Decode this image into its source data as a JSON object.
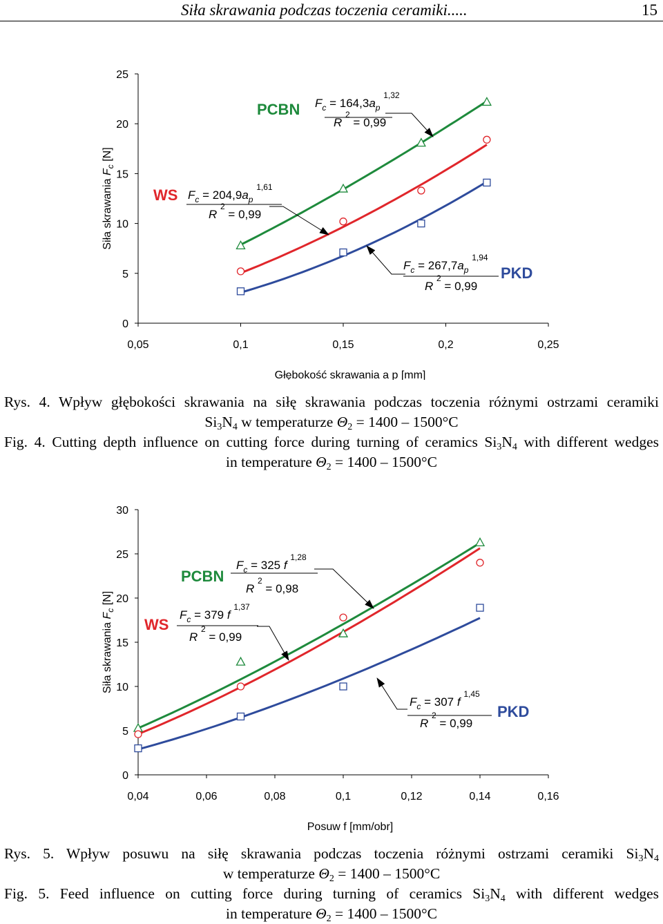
{
  "header": {
    "title": "Siła skrawania podczas toczenia ceramiki.....",
    "page": "15"
  },
  "colors": {
    "PCBN": "#1e8a3c",
    "WS": "#e0262b",
    "PKD": "#2e4b9c"
  },
  "chart_data": [
    {
      "type": "scatter",
      "id": "fig4",
      "xlabel": "Głębokość skrawania  a p [mm]",
      "ylabel": "Siła skrawania  F c [N]",
      "xlim": [
        0.05,
        0.25
      ],
      "ylim": [
        0,
        25
      ],
      "xticks": [
        "0,05",
        "0,1",
        "0,15",
        "0,2",
        "0,25"
      ],
      "yticks": [
        "0",
        "5",
        "10",
        "15",
        "20",
        "25"
      ],
      "grid": false,
      "series": [
        {
          "name": "PCBN",
          "marker": "triangle",
          "x": [
            0.1,
            0.15,
            0.188,
            0.22
          ],
          "y": [
            7.8,
            13.5,
            18.1,
            22.2
          ],
          "fit": {
            "a": 164.3,
            "b": 1.32,
            "x0": 0.1,
            "x1": 0.22
          }
        },
        {
          "name": "WS",
          "marker": "circle",
          "x": [
            0.1,
            0.15,
            0.188,
            0.22
          ],
          "y": [
            5.2,
            10.2,
            13.3,
            18.4
          ],
          "fit": {
            "a": 204.9,
            "b": 1.61,
            "x0": 0.1,
            "x1": 0.22
          }
        },
        {
          "name": "PKD",
          "marker": "square",
          "x": [
            0.1,
            0.15,
            0.188,
            0.22
          ],
          "y": [
            3.2,
            7.1,
            10.0,
            14.1
          ],
          "fit": {
            "a": 267.7,
            "b": 1.94,
            "x0": 0.1,
            "x1": 0.22
          }
        }
      ],
      "annotations": [
        {
          "tool": "PCBN",
          "eq_lhs": "F c = 164,3a p",
          "exp": "1,32",
          "r2": "R 2 = 0,99"
        },
        {
          "tool": "WS",
          "eq_lhs": "F c = 204,9a p",
          "exp": "1,61",
          "r2": "R 2 = 0,99"
        },
        {
          "tool": "PKD",
          "eq_lhs": "F c = 267,7a p",
          "exp": "1,94",
          "r2": "R 2 = 0,99"
        }
      ]
    },
    {
      "type": "scatter",
      "id": "fig5",
      "xlabel": "Posuw  f  [mm/obr]",
      "ylabel": "Siła skrawania F c [N]",
      "xlim": [
        0.04,
        0.16
      ],
      "ylim": [
        0,
        30
      ],
      "xticks": [
        "0,04",
        "0,06",
        "0,08",
        "0,1",
        "0,12",
        "0,14",
        "0,16"
      ],
      "yticks": [
        "0",
        "5",
        "10",
        "15",
        "20",
        "25",
        "30"
      ],
      "grid": false,
      "series": [
        {
          "name": "PCBN",
          "marker": "triangle",
          "x": [
            0.04,
            0.07,
            0.1,
            0.14
          ],
          "y": [
            5.3,
            12.8,
            16.0,
            26.3
          ],
          "fit": {
            "a": 325,
            "b": 1.28,
            "x0": 0.04,
            "x1": 0.14
          }
        },
        {
          "name": "WS",
          "marker": "circle",
          "x": [
            0.04,
            0.07,
            0.1,
            0.14
          ],
          "y": [
            4.6,
            10.0,
            17.8,
            24.0
          ],
          "fit": {
            "a": 379,
            "b": 1.37,
            "x0": 0.04,
            "x1": 0.14
          }
        },
        {
          "name": "PKD",
          "marker": "square",
          "x": [
            0.04,
            0.07,
            0.1,
            0.14
          ],
          "y": [
            3.0,
            6.6,
            10.0,
            18.9
          ],
          "fit": {
            "a": 307,
            "b": 1.45,
            "x0": 0.04,
            "x1": 0.14
          }
        }
      ],
      "annotations": [
        {
          "tool": "PCBN",
          "eq_lhs": "F c = 325 f",
          "exp": "1,28",
          "r2": "R 2 = 0,98"
        },
        {
          "tool": "WS",
          "eq_lhs": "F c = 379 f",
          "exp": "1,37",
          "r2": "R 2 = 0,99"
        },
        {
          "tool": "PKD",
          "eq_lhs": "F c = 307 f",
          "exp": "1,45",
          "r2": "R 2 = 0,99"
        }
      ]
    }
  ],
  "captions": {
    "fig4_pl_1": "Rys. 4. Wpływ głębokości skrawania na siłę skrawania podczas toczenia różnymi ostrzami ceramiki",
    "fig4_pl_2": "Si3N4 w temperaturze Θ2 = 1400 – 1500°C",
    "fig4_en_1": "Fig. 4. Cutting depth influence on cutting force during turning of ceramics Si3N4 with different wedges",
    "fig4_en_2": "in temperature Θ2 = 1400 – 1500°C",
    "fig5_pl_1": "Rys. 5. Wpływ posuwu na siłę skrawania podczas toczenia różnymi ostrzami ceramiki Si3N4",
    "fig5_pl_2": "w temperaturze Θ2 = 1400 – 1500°C",
    "fig5_en_1": "Fig. 5. Feed influence on cutting force during turning of ceramics Si3N4 with different wedges",
    "fig5_en_2": "in temperature Θ2 = 1400 – 1500°C"
  }
}
